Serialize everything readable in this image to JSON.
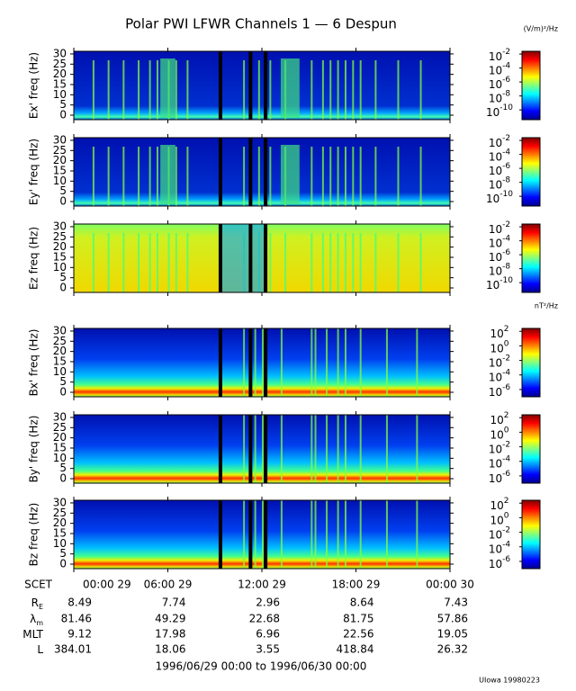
{
  "title": "Polar PWI LFWR Channels 1 — 6 Despun",
  "chart_data": [
    {
      "type": "spectrogram",
      "ylabel": "Ex' freq (Hz)",
      "ylim": [
        -2.2,
        31.3
      ],
      "yticks": [
        0,
        5,
        10,
        15,
        20,
        25,
        30
      ],
      "log_color": true,
      "clim": [
        4e-12,
        0.025
      ],
      "cticks": [
        {
          "value": 0.01,
          "label": "10",
          "exponent": "-2"
        },
        {
          "value": 0.0001,
          "label": "10",
          "exponent": "-4"
        },
        {
          "value": 1e-06,
          "label": "10",
          "exponent": "-6"
        },
        {
          "value": 1e-08,
          "label": "10",
          "exponent": "-8"
        },
        {
          "value": 1e-10,
          "label": "10",
          "exponent": "-10"
        }
      ],
      "colorbar_label": "(V/m)²/Hz"
    },
    {
      "type": "spectrogram",
      "ylabel": "Ey' freq (Hz)",
      "ylim": [
        -2.2,
        31.3
      ],
      "yticks": [
        0,
        5,
        10,
        15,
        20,
        25,
        30
      ],
      "log_color": true,
      "clim": [
        4e-12,
        0.025
      ],
      "cticks": [
        {
          "value": 0.01,
          "label": "10",
          "exponent": "-2"
        },
        {
          "value": 0.0001,
          "label": "10",
          "exponent": "-4"
        },
        {
          "value": 1e-06,
          "label": "10",
          "exponent": "-6"
        },
        {
          "value": 1e-08,
          "label": "10",
          "exponent": "-8"
        },
        {
          "value": 1e-10,
          "label": "10",
          "exponent": "-10"
        }
      ]
    },
    {
      "type": "spectrogram",
      "ylabel": "Ez freq (Hz)",
      "ylim": [
        -2.2,
        31.3
      ],
      "yticks": [
        0,
        5,
        10,
        15,
        20,
        25,
        30
      ],
      "log_color": true,
      "clim": [
        4e-12,
        0.025
      ],
      "cticks": [
        {
          "value": 0.01,
          "label": "10",
          "exponent": "-2"
        },
        {
          "value": 0.0001,
          "label": "10",
          "exponent": "-4"
        },
        {
          "value": 1e-06,
          "label": "10",
          "exponent": "-6"
        },
        {
          "value": 1e-08,
          "label": "10",
          "exponent": "-8"
        },
        {
          "value": 1e-10,
          "label": "10",
          "exponent": "-10"
        }
      ]
    },
    {
      "type": "spectrogram",
      "ylabel": "Bx' freq (Hz)",
      "ylim": [
        -2.2,
        31.3
      ],
      "yticks": [
        0,
        5,
        10,
        15,
        20,
        25,
        30
      ],
      "log_color": true,
      "clim": [
        1e-07,
        250
      ],
      "cticks": [
        {
          "value": 100,
          "label": "10",
          "exponent": "2"
        },
        {
          "value": 1,
          "label": "10",
          "exponent": "0"
        },
        {
          "value": 0.01,
          "label": "10",
          "exponent": "-2"
        },
        {
          "value": 0.0001,
          "label": "10",
          "exponent": "-4"
        },
        {
          "value": 1e-06,
          "label": "10",
          "exponent": "-6"
        }
      ],
      "colorbar_label": "nT²/Hz"
    },
    {
      "type": "spectrogram",
      "ylabel": "By' freq (Hz)",
      "ylim": [
        -2.2,
        31.3
      ],
      "yticks": [
        0,
        5,
        10,
        15,
        20,
        25,
        30
      ],
      "log_color": true,
      "clim": [
        1e-07,
        250
      ],
      "cticks": [
        {
          "value": 100,
          "label": "10",
          "exponent": "2"
        },
        {
          "value": 1,
          "label": "10",
          "exponent": "0"
        },
        {
          "value": 0.01,
          "label": "10",
          "exponent": "-2"
        },
        {
          "value": 0.0001,
          "label": "10",
          "exponent": "-4"
        },
        {
          "value": 1e-06,
          "label": "10",
          "exponent": "-6"
        }
      ]
    },
    {
      "type": "spectrogram",
      "ylabel": "Bz freq (Hz)",
      "ylim": [
        -2.2,
        31.3
      ],
      "yticks": [
        0,
        5,
        10,
        15,
        20,
        25,
        30
      ],
      "log_color": true,
      "clim": [
        1e-07,
        250
      ],
      "cticks": [
        {
          "value": 100,
          "label": "10",
          "exponent": "2"
        },
        {
          "value": 1,
          "label": "10",
          "exponent": "0"
        },
        {
          "value": 0.01,
          "label": "10",
          "exponent": "-2"
        },
        {
          "value": 0.0001,
          "label": "10",
          "exponent": "-4"
        },
        {
          "value": 1e-06,
          "label": "10",
          "exponent": "-6"
        }
      ],
      "xlim": [
        0,
        24
      ],
      "xticks": [
        {
          "value": 0,
          "label": "00:00 29"
        },
        {
          "value": 6,
          "label": "06:00 29"
        },
        {
          "value": 12,
          "label": "12:00 29"
        },
        {
          "value": 18,
          "label": "18:00 29"
        },
        {
          "value": 24,
          "label": "00:00 30"
        }
      ]
    }
  ],
  "ephemeris": {
    "time_label": "SCET",
    "rows": [
      {
        "label": "R",
        "sub": "E",
        "values": [
          8.49,
          7.74,
          2.96,
          8.64,
          7.43
        ]
      },
      {
        "label": "λ",
        "sub": "m",
        "values": [
          81.46,
          49.29,
          22.68,
          81.75,
          57.86
        ]
      },
      {
        "label": "MLT",
        "values": [
          9.12,
          17.98,
          6.96,
          22.56,
          19.05
        ]
      },
      {
        "label": "L",
        "values": [
          384.01,
          18.06,
          3.55,
          418.84,
          26.32
        ]
      }
    ]
  },
  "date_range": "1996/06/29 00:00 to 1996/06/30 00:00",
  "credit": "UIowa 19980223"
}
